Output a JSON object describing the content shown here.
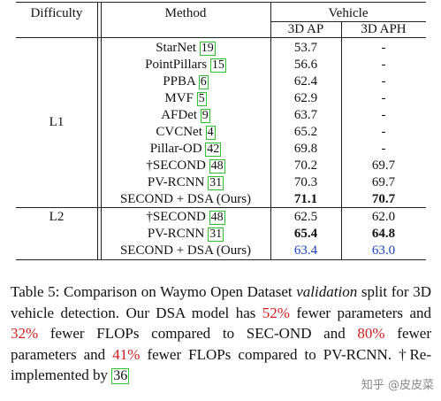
{
  "table": {
    "headers": {
      "difficulty": "Difficulty",
      "method": "Method",
      "group": "Vehicle",
      "ap": "3D AP",
      "aph": "3D APH"
    },
    "groups": [
      {
        "label": "L1",
        "rows": [
          {
            "method": "StarNet",
            "cite": "19",
            "ap": "53.7",
            "aph": "-"
          },
          {
            "method": "PointPillars",
            "cite": "15",
            "ap": "56.6",
            "aph": "-"
          },
          {
            "method": "PPBA",
            "cite": "6",
            "ap": "62.4",
            "aph": "-"
          },
          {
            "method": "MVF",
            "cite": "5",
            "ap": "62.9",
            "aph": "-"
          },
          {
            "method": "AFDet",
            "cite": "9",
            "ap": "63.7",
            "aph": "-"
          },
          {
            "method": "CVCNet",
            "cite": "4",
            "ap": "65.2",
            "aph": "-"
          },
          {
            "method": "Pillar-OD",
            "cite": "42",
            "ap": "69.8",
            "aph": "-"
          },
          {
            "method": "†SECOND",
            "cite": "48",
            "ap": "70.2",
            "aph": "69.7"
          },
          {
            "method": "PV-RCNN",
            "cite": "31",
            "ap": "70.3",
            "aph": "69.7"
          },
          {
            "method": "SECOND + DSA (Ours)",
            "cite": "",
            "ap": "71.1",
            "aph": "70.7",
            "style": "bold"
          }
        ]
      },
      {
        "label": "L2",
        "rows": [
          {
            "method": "†SECOND",
            "cite": "48",
            "ap": "62.5",
            "aph": "62.0"
          },
          {
            "method": "PV-RCNN",
            "cite": "31",
            "ap": "65.4",
            "aph": "64.8",
            "style": "bold"
          },
          {
            "method": "SECOND + DSA (Ours)",
            "cite": "",
            "ap": "63.4",
            "aph": "63.0",
            "style": "blue"
          }
        ]
      }
    ]
  },
  "caption": {
    "p1": "Table 5: Comparison on Waymo Open Dataset ",
    "p2": "validation",
    "p3": " split for 3D vehicle detection. Our DSA model has ",
    "p4": "52%",
    "p5": " fewer parameters and ",
    "p6": "32%",
    "p7": " fewer FLOPs compared to SEC-OND and ",
    "p8": "80%",
    "p9": " fewer parameters and ",
    "p10": "41%",
    "p11": " fewer FLOPs compared to PV-RCNN. †Re-implemented by ",
    "p12": "36"
  },
  "watermark": "知乎 @皮皮菜",
  "colors": {
    "highlight_red": "#d22020",
    "ours_blue": "#1a3fbf",
    "cite_box": "#2fbf2f"
  }
}
